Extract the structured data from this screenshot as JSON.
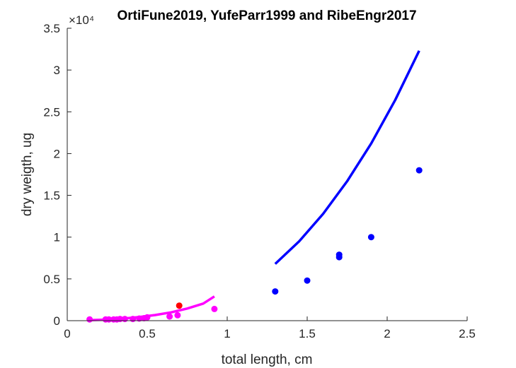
{
  "chart_data": {
    "type": "scatter",
    "title": "OrtiFune2019, YufeParr1999 and RibeEngr2017",
    "xlabel": "total length, cm",
    "ylabel": "dry weigth, ug",
    "y_multiplier_label": "×10⁴",
    "xlim": [
      0,
      2.5
    ],
    "ylim": [
      0,
      3.5
    ],
    "y_scale_note": "values in units of 10^4 ug",
    "x_ticks": [
      "0",
      "0.5",
      "1",
      "1.5",
      "2",
      "2.5"
    ],
    "y_ticks": [
      "0",
      "0.5",
      "1",
      "1.5",
      "2",
      "2.5",
      "3",
      "3.5"
    ],
    "grid": false,
    "series": [
      {
        "kind": "points",
        "color": "#0000ff",
        "x": [
          1.3,
          1.5,
          1.7,
          1.7,
          1.9,
          2.2
        ],
        "y": [
          0.35,
          0.48,
          0.76,
          0.79,
          1.0,
          1.8
        ]
      },
      {
        "kind": "points",
        "color": "#ff0000",
        "x": [
          0.7
        ],
        "y": [
          0.18
        ]
      },
      {
        "kind": "points",
        "color": "#ff00ff",
        "x": [
          0.14,
          0.24,
          0.26,
          0.29,
          0.31,
          0.33,
          0.36,
          0.41,
          0.45,
          0.48,
          0.5,
          0.64,
          0.69,
          0.92
        ],
        "y": [
          0.015,
          0.015,
          0.015,
          0.015,
          0.015,
          0.02,
          0.02,
          0.02,
          0.025,
          0.03,
          0.04,
          0.05,
          0.065,
          0.14
        ]
      },
      {
        "kind": "line",
        "color": "#0000ff",
        "x": [
          1.3,
          1.45,
          1.6,
          1.75,
          1.9,
          2.05,
          2.2
        ],
        "y": [
          0.68,
          0.95,
          1.28,
          1.67,
          2.12,
          2.64,
          3.23
        ]
      },
      {
        "kind": "line",
        "color": "#ff00ff",
        "x": [
          0.14,
          0.25,
          0.35,
          0.45,
          0.55,
          0.65,
          0.75,
          0.85,
          0.92
        ],
        "y": [
          0.006,
          0.013,
          0.025,
          0.043,
          0.068,
          0.1,
          0.145,
          0.205,
          0.29
        ]
      }
    ]
  }
}
